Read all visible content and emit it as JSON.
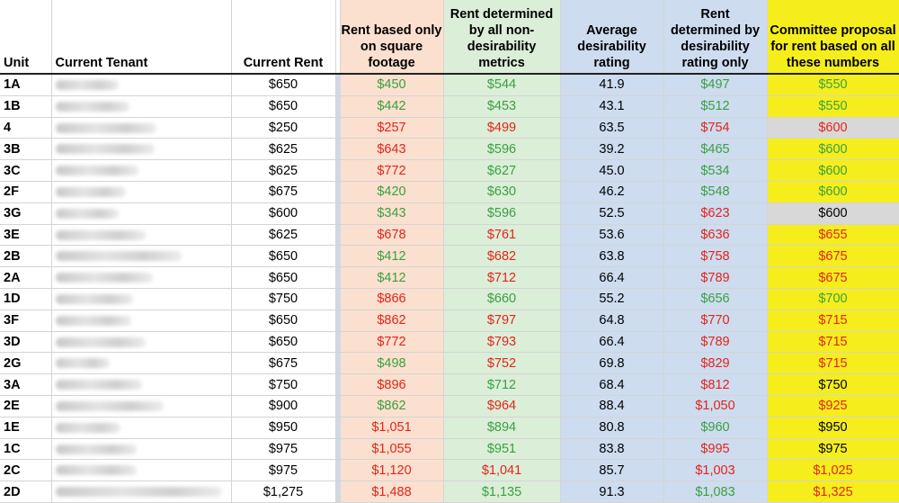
{
  "columns": [
    "Unit",
    "Current Tenant",
    "Current Rent",
    "Rent based only on square footage",
    "Rent determined by all non-desirability metrics",
    "Average desirability rating",
    "Rent determined by desirability rating only",
    "Committee proposal for rent based on all these numbers"
  ],
  "colors": {
    "peach": "#fbe0cf",
    "green_bg": "#dbeed8",
    "blue_bg": "#cddcef",
    "yellow_bg": "#f5ee1c",
    "grey_bg": "#d8d8d8",
    "green_text": "#3aa041",
    "red_text": "#e3241b"
  },
  "rows": [
    {
      "unit": "1A",
      "rent": "$650",
      "sqft": "$450",
      "sqft_c": "g",
      "nondes": "$544",
      "nondes_c": "g",
      "avg": "41.9",
      "des": "$497",
      "des_c": "g",
      "prop": "$550",
      "prop_c": "g",
      "prop_bg": "yellow",
      "tw": 70
    },
    {
      "unit": "1B",
      "rent": "$650",
      "sqft": "$442",
      "sqft_c": "g",
      "nondes": "$453",
      "nondes_c": "g",
      "avg": "43.1",
      "des": "$512",
      "des_c": "g",
      "prop": "$550",
      "prop_c": "g",
      "prop_bg": "yellow",
      "tw": 82
    },
    {
      "unit": "4",
      "rent": "$250",
      "sqft": "$257",
      "sqft_c": "r",
      "nondes": "$499",
      "nondes_c": "r",
      "avg": "63.5",
      "des": "$754",
      "des_c": "r",
      "prop": "$600",
      "prop_c": "r",
      "prop_bg": "grey",
      "tw": 112
    },
    {
      "unit": "3B",
      "rent": "$625",
      "sqft": "$643",
      "sqft_c": "r",
      "nondes": "$596",
      "nondes_c": "g",
      "avg": "39.2",
      "des": "$465",
      "des_c": "g",
      "prop": "$600",
      "prop_c": "g",
      "prop_bg": "yellow",
      "tw": 110
    },
    {
      "unit": "3C",
      "rent": "$625",
      "sqft": "$772",
      "sqft_c": "r",
      "nondes": "$627",
      "nondes_c": "g",
      "avg": "45.0",
      "des": "$534",
      "des_c": "g",
      "prop": "$600",
      "prop_c": "g",
      "prop_bg": "yellow",
      "tw": 92
    },
    {
      "unit": "2F",
      "rent": "$675",
      "sqft": "$420",
      "sqft_c": "g",
      "nondes": "$630",
      "nondes_c": "g",
      "avg": "46.2",
      "des": "$548",
      "des_c": "g",
      "prop": "$600",
      "prop_c": "g",
      "prop_bg": "yellow",
      "tw": 78
    },
    {
      "unit": "3G",
      "rent": "$600",
      "sqft": "$343",
      "sqft_c": "g",
      "nondes": "$596",
      "nondes_c": "g",
      "avg": "52.5",
      "des": "$623",
      "des_c": "r",
      "prop": "$600",
      "prop_c": "k",
      "prop_bg": "grey",
      "tw": 70
    },
    {
      "unit": "3E",
      "rent": "$625",
      "sqft": "$678",
      "sqft_c": "r",
      "nondes": "$761",
      "nondes_c": "r",
      "avg": "53.6",
      "des": "$636",
      "des_c": "r",
      "prop": "$655",
      "prop_c": "r",
      "prop_bg": "yellow",
      "tw": 100
    },
    {
      "unit": "2B",
      "rent": "$650",
      "sqft": "$412",
      "sqft_c": "g",
      "nondes": "$682",
      "nondes_c": "r",
      "avg": "63.8",
      "des": "$758",
      "des_c": "r",
      "prop": "$675",
      "prop_c": "r",
      "prop_bg": "yellow",
      "tw": 140
    },
    {
      "unit": "2A",
      "rent": "$650",
      "sqft": "$412",
      "sqft_c": "g",
      "nondes": "$712",
      "nondes_c": "r",
      "avg": "66.4",
      "des": "$789",
      "des_c": "r",
      "prop": "$675",
      "prop_c": "r",
      "prop_bg": "yellow",
      "tw": 108
    },
    {
      "unit": "1D",
      "rent": "$750",
      "sqft": "$866",
      "sqft_c": "r",
      "nondes": "$660",
      "nondes_c": "g",
      "avg": "55.2",
      "des": "$656",
      "des_c": "g",
      "prop": "$700",
      "prop_c": "g",
      "prop_bg": "yellow",
      "tw": 86
    },
    {
      "unit": "3F",
      "rent": "$650",
      "sqft": "$862",
      "sqft_c": "r",
      "nondes": "$797",
      "nondes_c": "r",
      "avg": "64.8",
      "des": "$770",
      "des_c": "r",
      "prop": "$715",
      "prop_c": "r",
      "prop_bg": "yellow",
      "tw": 84
    },
    {
      "unit": "3D",
      "rent": "$650",
      "sqft": "$772",
      "sqft_c": "r",
      "nondes": "$793",
      "nondes_c": "r",
      "avg": "66.4",
      "des": "$789",
      "des_c": "r",
      "prop": "$715",
      "prop_c": "r",
      "prop_bg": "yellow",
      "tw": 100
    },
    {
      "unit": "2G",
      "rent": "$675",
      "sqft": "$498",
      "sqft_c": "g",
      "nondes": "$752",
      "nondes_c": "r",
      "avg": "69.8",
      "des": "$829",
      "des_c": "r",
      "prop": "$715",
      "prop_c": "r",
      "prop_bg": "yellow",
      "tw": 60
    },
    {
      "unit": "3A",
      "rent": "$750",
      "sqft": "$896",
      "sqft_c": "r",
      "nondes": "$712",
      "nondes_c": "g",
      "avg": "68.4",
      "des": "$812",
      "des_c": "r",
      "prop": "$750",
      "prop_c": "k",
      "prop_bg": "yellow",
      "tw": 96
    },
    {
      "unit": "2E",
      "rent": "$900",
      "sqft": "$862",
      "sqft_c": "g",
      "nondes": "$964",
      "nondes_c": "r",
      "avg": "88.4",
      "des": "$1,050",
      "des_c": "r",
      "prop": "$925",
      "prop_c": "r",
      "prop_bg": "yellow",
      "tw": 120
    },
    {
      "unit": "1E",
      "rent": "$950",
      "sqft": "$1,051",
      "sqft_c": "r",
      "nondes": "$894",
      "nondes_c": "g",
      "avg": "80.8",
      "des": "$960",
      "des_c": "g",
      "prop": "$950",
      "prop_c": "k",
      "prop_bg": "yellow",
      "tw": 72
    },
    {
      "unit": "1C",
      "rent": "$975",
      "sqft": "$1,055",
      "sqft_c": "r",
      "nondes": "$951",
      "nondes_c": "g",
      "avg": "83.8",
      "des": "$995",
      "des_c": "r",
      "prop": "$975",
      "prop_c": "k",
      "prop_bg": "yellow",
      "tw": 90
    },
    {
      "unit": "2C",
      "rent": "$975",
      "sqft": "$1,120",
      "sqft_c": "r",
      "nondes": "$1,041",
      "nondes_c": "r",
      "avg": "85.7",
      "des": "$1,003",
      "des_c": "r",
      "prop": "$1,025",
      "prop_c": "r",
      "prop_bg": "yellow",
      "tw": 90
    },
    {
      "unit": "2D",
      "rent": "$1,275",
      "sqft": "$1,488",
      "sqft_c": "r",
      "nondes": "$1,135",
      "nondes_c": "g",
      "avg": "91.3",
      "des": "$1,083",
      "des_c": "g",
      "prop": "$1,325",
      "prop_c": "r",
      "prop_bg": "yellow",
      "tw": 185
    }
  ]
}
